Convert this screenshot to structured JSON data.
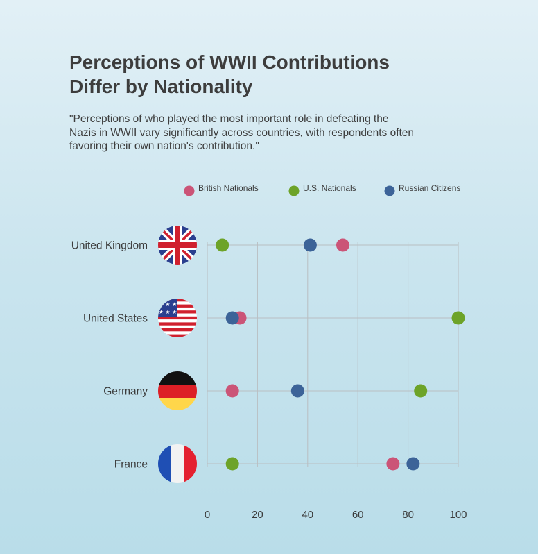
{
  "title": "Perceptions of WWII Contributions Differ by Nationality",
  "subtitle": "\"Perceptions of who played the most important role in defeating the Nazis in WWII vary significantly across countries, with respondents often favoring their own nation's contribution.\"",
  "chart_data": {
    "type": "scatter",
    "title": "Perceptions of WWII Contributions Differ by Nationality",
    "xlabel": "",
    "ylabel": "",
    "xlim": [
      0,
      100
    ],
    "x_ticks": [
      0,
      20,
      40,
      60,
      80,
      100
    ],
    "grid": true,
    "legend_position": "top",
    "categories": [
      "United Kingdom",
      "United States",
      "Germany",
      "France"
    ],
    "category_flag_icons": [
      "uk-flag-icon",
      "us-flag-icon",
      "germany-flag-icon",
      "france-flag-icon"
    ],
    "series": [
      {
        "name": "British Nationals",
        "color": "#cb5477",
        "values": [
          54,
          13,
          10,
          74
        ]
      },
      {
        "name": "U.S. Nationals",
        "color": "#6da328",
        "values": [
          6,
          100,
          85,
          10
        ]
      },
      {
        "name": "Russian Citizens",
        "color": "#3c6398",
        "values": [
          41,
          10,
          36,
          82
        ]
      }
    ]
  }
}
